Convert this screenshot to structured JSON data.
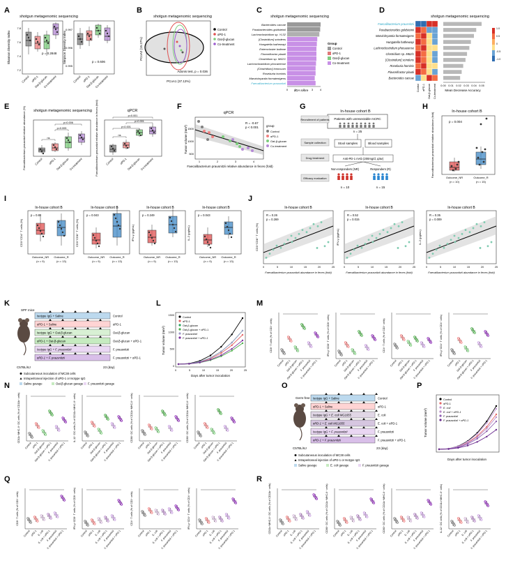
{
  "panels": {
    "A": {
      "letter": "A",
      "title": "shotgun metagenomic sequencing",
      "ylabel_1": "Shannon Diversity Index",
      "ylabel_2": "Simpson Diversity Index",
      "p_1": "p = 0.2848",
      "p_2": "p = 0.606",
      "ticks_1": [
        "7.2",
        "7.4",
        "7.6",
        "7.8"
      ],
      "ticks_2": [
        "0.995",
        "0.996",
        "0.997"
      ],
      "groups": [
        "Control",
        "αPD-1",
        "Oat-β-glucan",
        "Co-treatment"
      ]
    },
    "B": {
      "letter": "B",
      "title": "shotgun metagenomic sequencing",
      "xlabel": "PCoA1 (37.12%)",
      "ylabel": "PCoA2 (15.27%)",
      "stat": "Adonis test, p = 0.036",
      "legend": [
        "Control",
        "αPD-1",
        "Oat-β-glucan",
        "Co-treatment"
      ]
    },
    "C": {
      "letter": "C",
      "title": "shotgun metagenomic sequencing",
      "xlabel": "LDA score",
      "xticks": [
        "0",
        "1",
        "2",
        "3",
        "4"
      ],
      "taxa": [
        "Bacteroides caccae",
        "Parabacteroides goldsteinii",
        "Lachnoclostridium sp. YL32",
        "[Clostridium] scindens",
        "Hungatella hathewayi",
        "Enterocloster bolteae",
        "Flavonifractor plautii",
        "Clostridium sp. M62/1",
        "Lachnoclostridium phocaeense",
        "[Clostridium] innocuum",
        "Roseburia hominis",
        "Marvinbryantia formatexigens",
        "Faecalibacterium prausnitzii"
      ],
      "lda": [
        4.0,
        3.95,
        3.85,
        3.6,
        3.55,
        3.5,
        3.5,
        3.5,
        3.45,
        3.4,
        3.4,
        3.3,
        3.4
      ],
      "legend_title": "Group",
      "legend": [
        "Control",
        "αPD-1",
        "Oat-β-glucan",
        "Co-treatment"
      ]
    },
    "D": {
      "letter": "D",
      "title": "shotgun metagenomic sequencing",
      "taxa": [
        "Faecalibacterium prausnitzii",
        "Parabacteroides goldsteinii",
        "Marvinbryantia formatexigens",
        "Hungatella hathewayi",
        "Lachnoclostridium phocaeense",
        "Clostridium sp. M62/1",
        "[Clostridium] scindens",
        "Roseburia hominis",
        "Flavonifractor plautii",
        "Bacteroides caccae"
      ],
      "mda": [
        0.05,
        0.043,
        0.04,
        0.036,
        0.034,
        0.031,
        0.029,
        0.026,
        0.024,
        0.022
      ],
      "xlabel": "Mean Decrease Accuracy",
      "xticks": [
        "0.00",
        "0.01",
        "0.02",
        "0.03",
        "0.04",
        "0.05"
      ],
      "groups": [
        "Control",
        "αPD-1",
        "Oat-β-glucan",
        "Co-treatment"
      ],
      "cbar_ticks": [
        "1.0",
        "0.5",
        "0",
        "-0.5",
        "-1.0"
      ]
    },
    "E": {
      "letter": "E",
      "title_1": "shotgun metagenomic sequencing",
      "title_2": "qPCR",
      "ylabel_1": "Faecalibacterium prausnitzii relative abundance (%)",
      "ylabel_2": "Faecalibacterium prausnitzii relative abundance in feces (fold)",
      "sig_1": [
        "ns",
        "p=0.005",
        "p=0.006"
      ],
      "sig_2": [
        "ns",
        "p<0.001",
        "p<0.001",
        "p=0.001"
      ],
      "groups": [
        "Control",
        "αPD-1",
        "Oat-β-glucan",
        "Co-treatment"
      ]
    },
    "F": {
      "letter": "F",
      "title": "qPCR",
      "xlabel": "Faecalibacterium prausnitzii relative abundance in feces (fold)",
      "ylabel": "Tumor volume (mm³)",
      "stat_r": "R = -0.67",
      "stat_p": "p < 0.001",
      "legend_title": "group",
      "legend": [
        "Control",
        "αPD-1",
        "Oat-β-glucan",
        "Co-treatment"
      ],
      "yticks": [
        "500",
        "1000",
        "1500"
      ],
      "xticks": [
        "1",
        "2",
        "3",
        "4"
      ]
    },
    "G": {
      "letter": "G",
      "title": "In-house cohort B",
      "box_patients": "Patients with unresectable mCRC",
      "n25": "n = 25",
      "step1": "Recruitment of patients",
      "step2": "Sample collection",
      "step3": "Drug treatment",
      "step4": "Efficacy evaluation",
      "stool": "Stool samples",
      "blood": "Blood samples",
      "drug": "Anti-PD-1 mAb (200mg/d, q3w)",
      "nr": "Non-responders (NR)",
      "r": "Responders (R)",
      "n10": "n = 10",
      "n15": "n = 15"
    },
    "H": {
      "letter": "H",
      "title": "In-house cohort B",
      "ylabel": "Faecalibacterium prausnitzii relative abundance (fold)",
      "p": "p = 0.004",
      "groups": [
        "Outcome_NR",
        "Outcome_R"
      ],
      "ns": [
        "(n = 10)",
        "(n = 15)"
      ]
    },
    "I": {
      "letter": "I",
      "title": "In-house cohort B",
      "p": [
        "p = 0.89",
        "p = 0.043",
        "p = 0.249",
        "p = 0.043"
      ],
      "ylabels": [
        "CD3⁺CD4⁺ T cells (%)",
        "CD3⁺CD8⁺ T cells (%)",
        "IFN-γ (pg/mL)",
        "IL-2 (pg/mL)"
      ],
      "groups": [
        "Outcome_NR",
        "Outcome_R"
      ],
      "ns": [
        "(n = 9)",
        "(n = 13)"
      ]
    },
    "J": {
      "letter": "J",
      "title": "In-house cohort B",
      "stats": [
        {
          "r": "R = 0.26",
          "p": "p = 0.269"
        },
        {
          "r": "R = 0.52",
          "p": "p = 0.015"
        },
        {
          "r": "R = 0.35",
          "p": "p = 0.009"
        }
      ],
      "ylabels": [
        "CD3⁺CD8⁺ T cells (%)",
        "IFN-γ (pg/mL)",
        "IL-2 (pg/mL)"
      ],
      "xlabel": "Faecalibacterium prausnitzii abundance in feces (fold)",
      "xticks": [
        "0",
        "5",
        "10",
        "15",
        "20",
        "25"
      ]
    },
    "K": {
      "letter": "K",
      "mouse_label": "SPF mice",
      "strain": "C57BL/6J",
      "day_label": "23 (day)",
      "rows": [
        "Isotype IgG + Saline",
        "αPD-1 + Saline",
        "Isotype IgG + Oat-β-glucan",
        "αPD-1 + Oat-β-glucan",
        "Isotype IgG + F. prausnitzii",
        "αPD-1 + F. prausnitzii"
      ],
      "right": [
        "Control",
        "αPD-1",
        "Oat-β-glucan",
        "Oat-β-glucan + αPD-1",
        "F. prausnitzii",
        "F. prausnitzii + αPD-1"
      ],
      "legend": [
        "Subcutaneous inoculation of MC38 cells",
        "Intraperitoneal injection of αPD-1 or Isotype IgG",
        "Saline gavage",
        "Oat-β-glucan gavage",
        "F. prausnitzii gavage"
      ]
    },
    "L": {
      "letter": "L",
      "xlabel": "Days after tumor inoculation",
      "ylabel": "Tumor volume (mm³)",
      "xticks": [
        "0",
        "5",
        "10",
        "15",
        "20",
        "25"
      ],
      "yticks": [
        "0",
        "500",
        "1000",
        "1500"
      ],
      "legend": [
        "Control",
        "αPD-1",
        "Oat-β-glucan",
        "Oat-β-glucan + αPD-1",
        "F. prausnitzii",
        "F. prausnitzii + αPD-1"
      ]
    },
    "M": {
      "letter": "M",
      "ylabels": [
        "CD8⁺ T cells (% of CD3⁺ cells)",
        "IFN-γ⁺CD8⁺ T cells (% of CD8⁺ cells)",
        "CD4⁺ T cells (% of CD3⁺ cells)",
        "IFN-γ⁺CD4⁺ T cells (% of CD4⁺ cells)"
      ],
      "groups": [
        "Control",
        "αPD-1",
        "Oat-β-glucan",
        "Oat-β-glucan + αPD-1",
        "F. prausnitzii",
        "F. prausnitzii + αPD-1"
      ]
    },
    "N": {
      "letter": "N",
      "ylabels": [
        "CD11c⁺MHC-II⁺ DC cells (% of CD11b⁺ cells)",
        "IL-12⁺ DC cells (% of CD11c⁺MHC-II⁺ cells)",
        "CD86⁺ DC cells (% of CD11c⁺MHC-II⁺ cells)",
        "CD80⁺ DC cells (% of CD11c⁺MHC-II⁺ cells)"
      ],
      "groups": [
        "Control",
        "αPD-1",
        "Oat-β-glucan",
        "Oat-β-glucan + αPD-1",
        "F. prausnitzii",
        "F. prausnitzii + αPD-1"
      ]
    },
    "O": {
      "letter": "O",
      "mouse_label": "Germ-free mice",
      "strain": "C57BL/6J",
      "day_label": "23 (day)",
      "rows": [
        "Isotype IgG + Saline",
        "αPD-1 + Saline",
        "Isotype IgG + E. coli MG1655",
        "αPD-1 + E. coli MG1655",
        "Isotype IgG + F. prausnitzii",
        "αPD-1 + F. prausnitzii"
      ],
      "right": [
        "Control",
        "αPD-1",
        "E. coli",
        "E. coli + αPD-1",
        "F. prausnitzii",
        "F. prausnitzii + αPD-1"
      ],
      "legend": [
        "Subcutaneous inoculation of MC38 cells",
        "Intraperitoneal injection of αPD-1 or Isotype IgG",
        "Saline gavage",
        "E. coli gavage",
        "F. prausnitzii gavage"
      ]
    },
    "P": {
      "letter": "P",
      "xlabel": "Days after tumor inoculation",
      "ylabel": "Tumor volume (mm³)",
      "legend": [
        "Control",
        "αPD-1",
        "E. coli",
        "E. coli + αPD-1",
        "F. prausnitzii",
        "F. prausnitzii + αPD-1"
      ]
    },
    "Q": {
      "letter": "Q",
      "ylabels": [
        "CD8⁺ T cells (% of CD3⁺ cells)",
        "IFN-γ⁺CD8⁺ T cells (% of CD8⁺ cells)",
        "CD4⁺ T cells (% of CD3⁺ cells)",
        "IFN-γ⁺CD4⁺ T cells (% of CD4⁺ cells)"
      ],
      "groups": [
        "Control",
        "αPD-1",
        "E. coli",
        "E. coli + αPD-1",
        "F. prausnitzii",
        "F. prausnitzii + αPD-1"
      ],
      "sig": [
        "p<0.001",
        "ns",
        "ns"
      ]
    },
    "R": {
      "letter": "R",
      "ylabels": [
        "CD11c⁺MHC-II⁺ DC cells (% of CD11b⁺ cells)",
        "CD86⁺ DC cells (% of CD11c⁺MHC-II⁺ cells)",
        "CD80⁺ DC cells (% of CD11c⁺MHC-II⁺ cells)",
        "IL-12⁺ DC cells (% of CD11c⁺MHC-II⁺ cells)"
      ],
      "groups": [
        "Control",
        "αPD-1",
        "E. coli",
        "E. coli + αPD-1",
        "F. prausnitzii",
        "F. prausnitzii + αPD-1"
      ],
      "sig": [
        "p<0.001",
        "ns",
        "ns"
      ]
    }
  },
  "colors": {
    "control": "#7f7f7f",
    "pd1": "#f08080",
    "oat": "#7ccd7c",
    "co": "#b58ad6",
    "co_dark": "#4daf4a",
    "fp": "#c9a0e0",
    "fp_pd1": "#8e2bb8",
    "ecoli": "#d1b6d6",
    "ecoli_pd1": "#b98cc9"
  }
}
